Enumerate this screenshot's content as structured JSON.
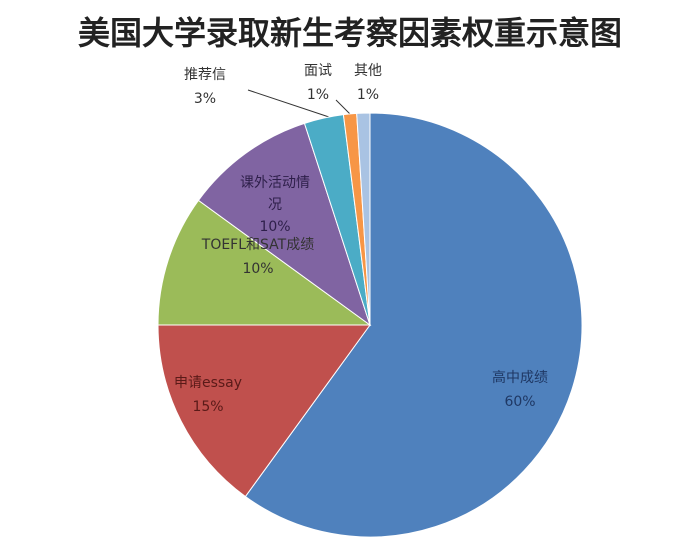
{
  "chart_data": {
    "type": "pie",
    "title": "美国大学录取新生考察因素权重示意图",
    "categories": [
      "高中成绩",
      "申请essay",
      "TOEFL和SAT成绩",
      "课外活动情况",
      "推荐信",
      "面试",
      "其他"
    ],
    "values": [
      60,
      15,
      10,
      10,
      3,
      1,
      1
    ],
    "value_labels": [
      "60%",
      "15%",
      "10%",
      "10%",
      "3%",
      "1%",
      "1%"
    ],
    "colors": [
      "#4f81bd",
      "#c0504d",
      "#9bbb59",
      "#8064a2",
      "#4bacc6",
      "#f79646",
      "#a9c3e3"
    ]
  }
}
